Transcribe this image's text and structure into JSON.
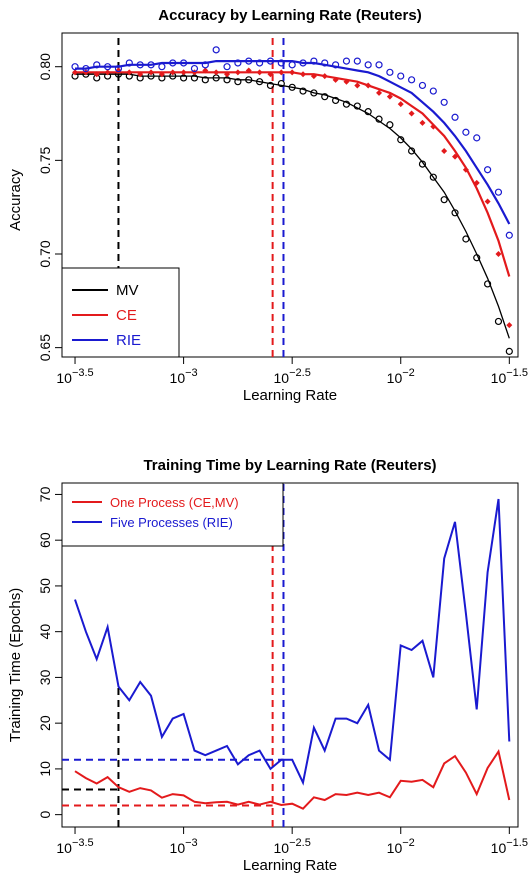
{
  "chart_data": [
    {
      "type": "scatter",
      "title": "Accuracy by Learning Rate (Reuters)",
      "xlabel": "Learning Rate",
      "ylabel": "Accuracy",
      "x_scale": "log10",
      "xlim_log10": [
        -3.56,
        -1.46
      ],
      "ylim": [
        0.645,
        0.818
      ],
      "x_ticks": [
        {
          "log10": -3.5,
          "base": "10",
          "exp": "−3.5"
        },
        {
          "log10": -3,
          "base": "10",
          "exp": "−3"
        },
        {
          "log10": -2.5,
          "base": "10",
          "exp": "−2.5"
        },
        {
          "log10": -2,
          "base": "10",
          "exp": "−2"
        },
        {
          "log10": -1.5,
          "base": "10",
          "exp": "−1.5"
        }
      ],
      "y_ticks": [
        "0.65",
        "0.70",
        "0.75",
        "0.80"
      ],
      "y_tick_values": [
        0.65,
        0.7,
        0.75,
        0.8
      ],
      "legend": {
        "position": "bottom-left",
        "entries": [
          {
            "label": "MV",
            "color": "#000000"
          },
          {
            "label": "CE",
            "color": "#e31a1c"
          },
          {
            "label": "RIE",
            "color": "#1a1ad0"
          }
        ]
      },
      "series": [
        {
          "name": "MV",
          "color": "#000000",
          "marker": "open-circle",
          "x_log10": [
            -3.5,
            -3.45,
            -3.4,
            -3.35,
            -3.3,
            -3.25,
            -3.2,
            -3.15,
            -3.1,
            -3.05,
            -3.0,
            -2.95,
            -2.9,
            -2.85,
            -2.8,
            -2.75,
            -2.7,
            -2.65,
            -2.6,
            -2.55,
            -2.5,
            -2.45,
            -2.4,
            -2.35,
            -2.3,
            -2.25,
            -2.2,
            -2.15,
            -2.1,
            -2.05,
            -2.0,
            -1.95,
            -1.9,
            -1.85,
            -1.8,
            -1.75,
            -1.7,
            -1.65,
            -1.6,
            -1.55,
            -1.5
          ],
          "y": [
            0.795,
            0.796,
            0.794,
            0.795,
            0.796,
            0.795,
            0.794,
            0.795,
            0.794,
            0.795,
            0.794,
            0.794,
            0.793,
            0.794,
            0.793,
            0.792,
            0.793,
            0.792,
            0.79,
            0.791,
            0.789,
            0.787,
            0.786,
            0.784,
            0.782,
            0.78,
            0.779,
            0.776,
            0.772,
            0.769,
            0.761,
            0.755,
            0.748,
            0.741,
            0.729,
            0.722,
            0.708,
            0.698,
            0.684,
            0.664,
            0.648
          ],
          "fit_y": [
            0.796,
            0.796,
            0.796,
            0.796,
            0.796,
            0.796,
            0.795,
            0.795,
            0.795,
            0.795,
            0.795,
            0.795,
            0.794,
            0.794,
            0.794,
            0.793,
            0.793,
            0.792,
            0.791,
            0.79,
            0.789,
            0.788,
            0.786,
            0.785,
            0.783,
            0.781,
            0.778,
            0.775,
            0.771,
            0.767,
            0.762,
            0.756,
            0.749,
            0.741,
            0.733,
            0.723,
            0.712,
            0.7,
            0.687,
            0.672,
            0.655
          ]
        },
        {
          "name": "CE",
          "color": "#e31a1c",
          "marker": "filled-diamond",
          "x_log10": [
            -3.5,
            -3.45,
            -3.4,
            -3.35,
            -3.3,
            -3.25,
            -3.2,
            -3.15,
            -3.1,
            -3.05,
            -3.0,
            -2.95,
            -2.9,
            -2.85,
            -2.8,
            -2.75,
            -2.7,
            -2.65,
            -2.6,
            -2.55,
            -2.5,
            -2.45,
            -2.4,
            -2.35,
            -2.3,
            -2.25,
            -2.2,
            -2.15,
            -2.1,
            -2.05,
            -2.0,
            -1.95,
            -1.9,
            -1.85,
            -1.8,
            -1.75,
            -1.7,
            -1.65,
            -1.6,
            -1.55,
            -1.5
          ],
          "y": [
            0.797,
            0.797,
            0.796,
            0.797,
            0.798,
            0.797,
            0.796,
            0.797,
            0.796,
            0.797,
            0.797,
            0.797,
            0.798,
            0.797,
            0.796,
            0.797,
            0.798,
            0.797,
            0.796,
            0.797,
            0.797,
            0.796,
            0.795,
            0.795,
            0.793,
            0.792,
            0.79,
            0.79,
            0.786,
            0.784,
            0.78,
            0.775,
            0.77,
            0.768,
            0.755,
            0.752,
            0.745,
            0.738,
            0.728,
            0.7,
            0.662
          ],
          "fit_y": [
            0.797,
            0.797,
            0.797,
            0.797,
            0.797,
            0.797,
            0.797,
            0.797,
            0.797,
            0.797,
            0.797,
            0.797,
            0.797,
            0.797,
            0.797,
            0.797,
            0.797,
            0.797,
            0.797,
            0.797,
            0.797,
            0.796,
            0.796,
            0.795,
            0.794,
            0.793,
            0.792,
            0.79,
            0.788,
            0.786,
            0.783,
            0.779,
            0.775,
            0.769,
            0.763,
            0.755,
            0.746,
            0.735,
            0.722,
            0.707,
            0.688
          ]
        },
        {
          "name": "RIE",
          "color": "#1a1ad0",
          "marker": "open-circle",
          "x_log10": [
            -3.5,
            -3.45,
            -3.4,
            -3.35,
            -3.3,
            -3.25,
            -3.2,
            -3.15,
            -3.1,
            -3.05,
            -3.0,
            -2.95,
            -2.9,
            -2.85,
            -2.8,
            -2.75,
            -2.7,
            -2.65,
            -2.6,
            -2.55,
            -2.5,
            -2.45,
            -2.4,
            -2.35,
            -2.3,
            -2.25,
            -2.2,
            -2.15,
            -2.1,
            -2.05,
            -2.0,
            -1.95,
            -1.9,
            -1.85,
            -1.8,
            -1.75,
            -1.7,
            -1.65,
            -1.6,
            -1.55,
            -1.5
          ],
          "y": [
            0.8,
            0.799,
            0.801,
            0.8,
            0.799,
            0.802,
            0.801,
            0.801,
            0.8,
            0.802,
            0.802,
            0.799,
            0.801,
            0.809,
            0.8,
            0.802,
            0.803,
            0.802,
            0.803,
            0.802,
            0.801,
            0.802,
            0.803,
            0.802,
            0.801,
            0.803,
            0.803,
            0.801,
            0.801,
            0.797,
            0.795,
            0.793,
            0.79,
            0.787,
            0.781,
            0.773,
            0.765,
            0.762,
            0.745,
            0.733,
            0.71
          ],
          "fit_y": [
            0.799,
            0.799,
            0.8,
            0.8,
            0.8,
            0.801,
            0.801,
            0.801,
            0.802,
            0.802,
            0.802,
            0.802,
            0.802,
            0.803,
            0.803,
            0.803,
            0.803,
            0.803,
            0.803,
            0.803,
            0.803,
            0.802,
            0.802,
            0.801,
            0.8,
            0.799,
            0.798,
            0.797,
            0.795,
            0.792,
            0.789,
            0.786,
            0.781,
            0.776,
            0.77,
            0.763,
            0.755,
            0.746,
            0.737,
            0.727,
            0.716
          ]
        }
      ],
      "vlines": [
        {
          "x_log10": -3.3,
          "color": "#000000",
          "style": "dashed"
        },
        {
          "x_log10": -2.59,
          "color": "#e31a1c",
          "style": "dashed"
        },
        {
          "x_log10": -2.54,
          "color": "#1a1ad0",
          "style": "dashed"
        }
      ]
    },
    {
      "type": "line",
      "title": "Training Time by Learning Rate (Reuters)",
      "xlabel": "Learning Rate",
      "ylabel": "Training Time (Epochs)",
      "x_scale": "log10",
      "xlim_log10": [
        -3.56,
        -1.46
      ],
      "ylim": [
        -2.7,
        72.5
      ],
      "x_ticks": [
        {
          "log10": -3.5,
          "base": "10",
          "exp": "−3.5"
        },
        {
          "log10": -3,
          "base": "10",
          "exp": "−3"
        },
        {
          "log10": -2.5,
          "base": "10",
          "exp": "−2.5"
        },
        {
          "log10": -2,
          "base": "10",
          "exp": "−2"
        },
        {
          "log10": -1.5,
          "base": "10",
          "exp": "−1.5"
        }
      ],
      "y_ticks": [
        "0",
        "10",
        "20",
        "30",
        "40",
        "50",
        "60",
        "70"
      ],
      "y_tick_values": [
        0,
        10,
        20,
        30,
        40,
        50,
        60,
        70
      ],
      "legend": {
        "position": "top-left",
        "entries": [
          {
            "label": "One Process (CE,MV)",
            "color": "#e31a1c"
          },
          {
            "label": "Five Processes (RIE)",
            "color": "#1a1ad0"
          }
        ]
      },
      "series": [
        {
          "name": "One Process (CE,MV)",
          "color": "#e31a1c",
          "x_log10": [
            -3.5,
            -3.45,
            -3.4,
            -3.35,
            -3.3,
            -3.25,
            -3.2,
            -3.15,
            -3.1,
            -3.05,
            -3.0,
            -2.95,
            -2.9,
            -2.85,
            -2.8,
            -2.75,
            -2.7,
            -2.65,
            -2.6,
            -2.55,
            -2.5,
            -2.45,
            -2.4,
            -2.35,
            -2.3,
            -2.25,
            -2.2,
            -2.15,
            -2.1,
            -2.05,
            -2.0,
            -1.95,
            -1.9,
            -1.85,
            -1.8,
            -1.75,
            -1.7,
            -1.65,
            -1.6,
            -1.55,
            -1.5
          ],
          "y": [
            9.5,
            8,
            6.8,
            8.2,
            6,
            5,
            5.8,
            5.3,
            3.7,
            4.5,
            4.2,
            2.8,
            2.5,
            2.7,
            2.8,
            2.2,
            2.8,
            2.2,
            2.8,
            2.1,
            2.4,
            1.3,
            3.8,
            3.2,
            4.5,
            4.3,
            4.8,
            4.3,
            4.8,
            3.8,
            7.4,
            7.2,
            7.6,
            6,
            11.2,
            12.8,
            9.2,
            4.5,
            10.2,
            13.8,
            3.2
          ]
        },
        {
          "name": "Five Processes (RIE)",
          "color": "#1a1ad0",
          "x_log10": [
            -3.5,
            -3.45,
            -3.4,
            -3.35,
            -3.3,
            -3.25,
            -3.2,
            -3.15,
            -3.1,
            -3.05,
            -3.0,
            -2.95,
            -2.9,
            -2.85,
            -2.8,
            -2.75,
            -2.7,
            -2.65,
            -2.6,
            -2.55,
            -2.5,
            -2.45,
            -2.4,
            -2.35,
            -2.3,
            -2.25,
            -2.2,
            -2.15,
            -2.1,
            -2.05,
            -2.0,
            -1.95,
            -1.9,
            -1.85,
            -1.8,
            -1.75,
            -1.7,
            -1.65,
            -1.6,
            -1.55,
            -1.5
          ],
          "y": [
            47,
            40,
            34,
            41,
            28,
            25,
            29,
            26,
            17,
            21,
            22,
            14,
            13,
            14,
            15,
            11,
            13,
            14,
            10,
            12,
            12,
            7,
            19,
            14,
            21,
            21,
            20,
            24,
            14,
            12,
            37,
            36,
            38,
            30,
            56,
            64,
            44,
            23,
            53,
            69,
            16
          ]
        }
      ],
      "hlines": [
        {
          "y": 12,
          "x_end_log10": -2.54,
          "color": "#1a1ad0",
          "style": "dashed"
        },
        {
          "y": 2,
          "x_end_log10": -2.59,
          "color": "#e31a1c",
          "style": "dashed"
        },
        {
          "y": 5.5,
          "x_end_log10": -3.3,
          "color": "#000000",
          "style": "dashed"
        }
      ],
      "vlines": [
        {
          "x_log10": -3.3,
          "color": "#000000",
          "style": "dashed",
          "y_top": 28
        },
        {
          "x_log10": -2.59,
          "color": "#e31a1c",
          "style": "dashed",
          "y_top": 60
        },
        {
          "x_log10": -2.54,
          "color": "#1a1ad0",
          "style": "dashed",
          "y_top": 72.5
        }
      ]
    }
  ]
}
